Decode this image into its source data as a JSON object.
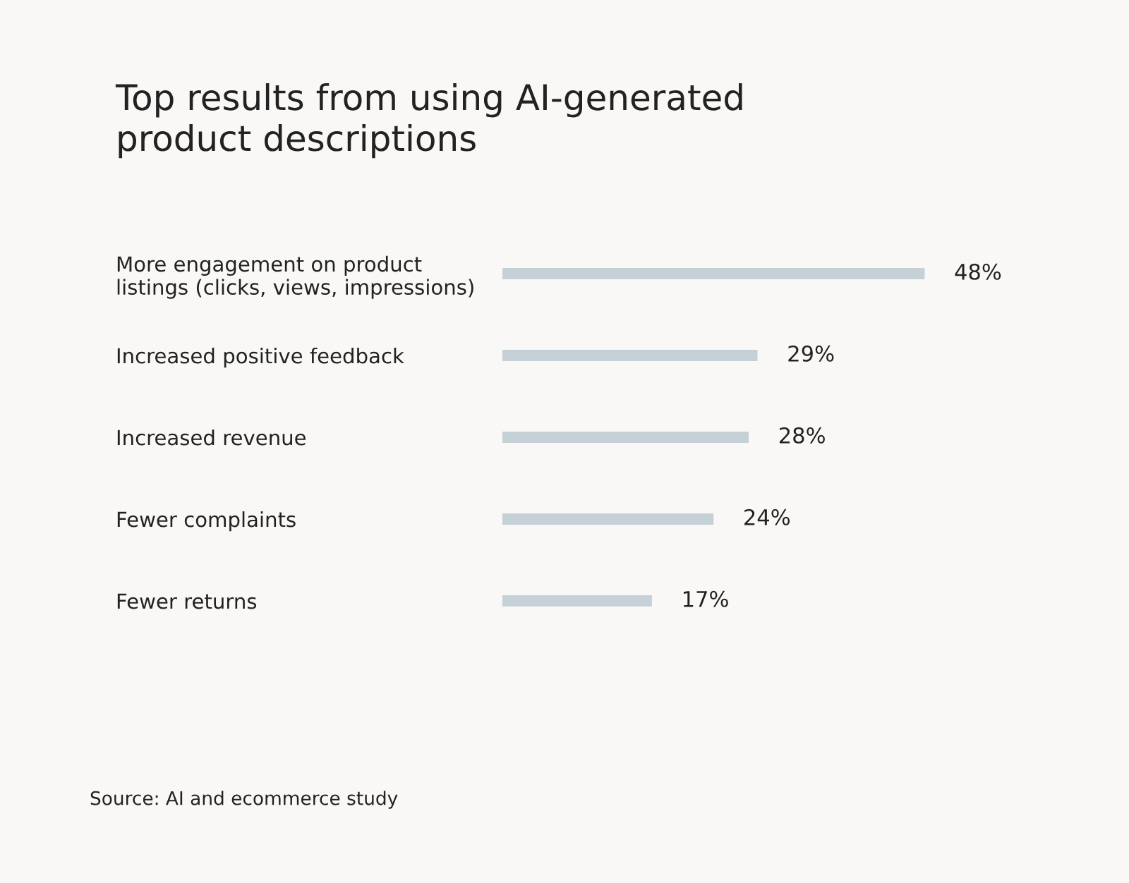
{
  "chart_data": {
    "type": "bar",
    "orientation": "horizontal",
    "title": "Top results from using AI-generated\nproduct descriptions",
    "categories": [
      "More engagement on product\nlistings (clicks, views, impressions)",
      "Increased positive feedback",
      "Increased revenue",
      "Fewer complaints",
      "Fewer returns"
    ],
    "values": [
      48,
      29,
      28,
      24,
      17
    ],
    "value_labels": [
      "48%",
      "29%",
      "28%",
      "24%",
      "17%"
    ],
    "color": "#c5d0d7",
    "annotations": [
      "Source: AI and ecommerce study"
    ],
    "grid": false,
    "legend": false
  }
}
